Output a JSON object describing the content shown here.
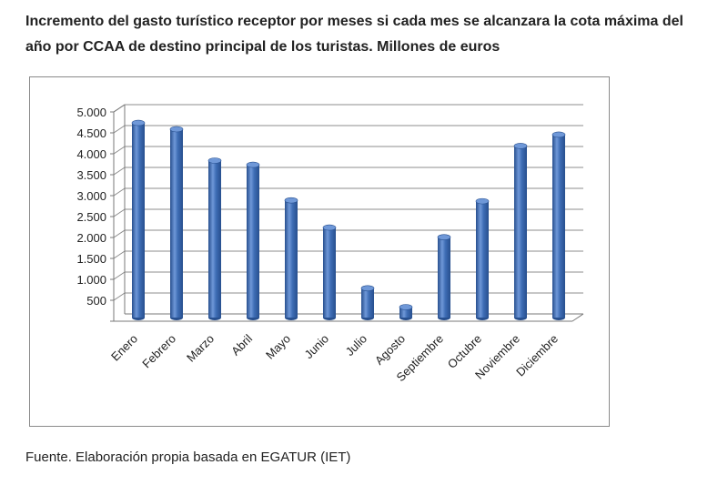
{
  "title": "Incremento del gasto turístico receptor por meses si cada mes se alcanzara la cota máxima del año por CCAA de destino principal de los turistas. Millones de euros",
  "source": "Fuente. Elaboración propia basada en EGATUR (IET)",
  "colors": {
    "bar": "#3e6db5",
    "bar_dark": "#274f8e",
    "bar_light": "#6f98d8",
    "grid": "#8c8c8c",
    "axis": "#7a7a7a"
  },
  "chart_data": {
    "type": "bar",
    "categories": [
      "Enero",
      "Febrero",
      "Marzo",
      "Abril",
      "Mayo",
      "Junio",
      "Julio",
      "Agosto",
      "Septiembre",
      "Octubre",
      "Noviembre",
      "Diciembre"
    ],
    "values": [
      4650,
      4500,
      3750,
      3650,
      2800,
      2150,
      700,
      250,
      1920,
      2780,
      4100,
      4370
    ],
    "y_ticks": [
      "500",
      "1.000",
      "1.500",
      "2.000",
      "2.500",
      "3.000",
      "3.500",
      "4.000",
      "4.500",
      "5.000"
    ],
    "ylim": [
      0,
      5000
    ],
    "grid": true,
    "style": "3d-cylinder"
  }
}
